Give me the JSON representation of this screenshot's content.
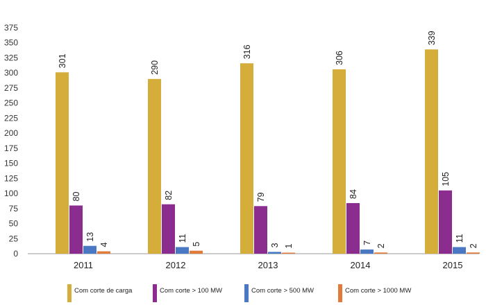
{
  "chart_data": {
    "type": "bar",
    "categories": [
      "2011",
      "2012",
      "2013",
      "2014",
      "2015"
    ],
    "series": [
      {
        "name": "Com  corte  de carga",
        "color": "#D4AD3A",
        "values": [
          301,
          290,
          316,
          306,
          339
        ]
      },
      {
        "name": "Com  corte  > 100  MW",
        "color": "#8B2C8F",
        "values": [
          80,
          82,
          79,
          84,
          105
        ]
      },
      {
        "name": "Com  corte  > 500  MW",
        "color": "#4A78C2",
        "values": [
          13,
          11,
          3,
          7,
          11
        ]
      },
      {
        "name": "Com  corte  > 1000  MW",
        "color": "#E07B39",
        "values": [
          4,
          5,
          1,
          2,
          2
        ]
      }
    ],
    "y_ticks": [
      "0",
      "25",
      "50",
      "75",
      "100",
      "125",
      "150",
      "175",
      "200",
      "225",
      "250",
      "275",
      "300",
      "325",
      "350",
      "375"
    ],
    "ylim": [
      0,
      375
    ],
    "grid": false,
    "legend_position": "bottom"
  }
}
